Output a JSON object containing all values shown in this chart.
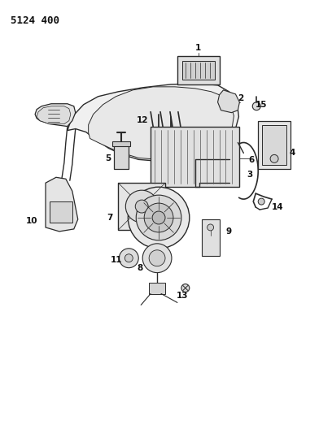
{
  "title": "5124 400",
  "bg_color": "#ffffff",
  "line_color": "#2a2a2a",
  "fill_light": "#e8e8e8",
  "fill_mid": "#d0d0d0",
  "fill_dark": "#b0b0b0"
}
